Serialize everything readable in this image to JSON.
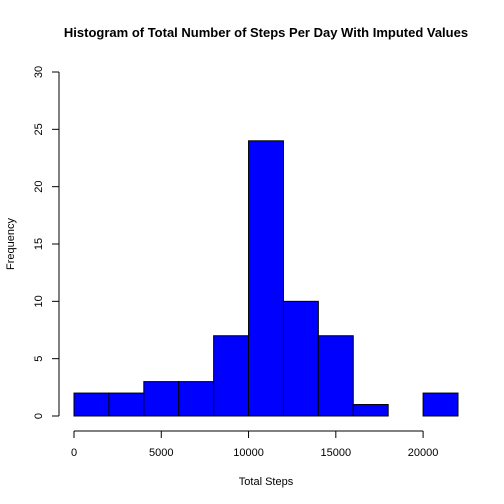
{
  "chart_data": {
    "type": "bar",
    "title": "Histogram of Total Number of Steps Per Day With Imputed Values",
    "xlabel": "Total Steps",
    "ylabel": "Frequency",
    "bin_edges": [
      0,
      2000,
      4000,
      6000,
      8000,
      10000,
      12000,
      14000,
      16000,
      18000,
      20000,
      22000
    ],
    "values": [
      2,
      2,
      3,
      3,
      7,
      24,
      10,
      7,
      1,
      0,
      2
    ],
    "xlim": [
      0,
      22000
    ],
    "ylim": [
      0,
      30
    ],
    "xticks": [
      0,
      5000,
      10000,
      15000,
      20000
    ],
    "yticks": [
      0,
      5,
      10,
      15,
      20,
      25,
      30
    ],
    "bar_color": "#0000ff",
    "bar_border_color": "#000000",
    "grid": false
  }
}
